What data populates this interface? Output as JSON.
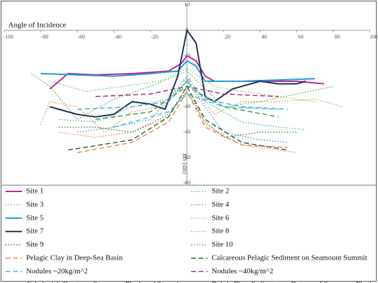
{
  "chart_data": {
    "type": "line",
    "x_label": "Angle of Incidence",
    "y_label": "BS (dB)",
    "xlim": [
      -100,
      100
    ],
    "ylim": [
      -60,
      10
    ],
    "xticks": [
      -100,
      -80,
      -60,
      -40,
      -20,
      20,
      40,
      60,
      80,
      100
    ],
    "yticks": [
      10,
      0,
      -10,
      -20,
      -30,
      -40,
      -50,
      -60
    ],
    "series": [
      {
        "name": "Site 1",
        "color": "#c0249a",
        "style": "solid",
        "x": [
          -75,
          -65,
          -50,
          -30,
          -10,
          -3,
          0,
          5,
          10,
          15,
          40,
          60,
          75
        ],
        "values": [
          -23,
          -17,
          -17.5,
          -17,
          -16,
          -13,
          -10,
          -12,
          -18,
          -20,
          -20,
          -20,
          -21
        ]
      },
      {
        "name": "Site 2",
        "color": "#2aa6a0",
        "style": "dotted",
        "x": [
          -70,
          -50,
          -30,
          -10,
          0,
          10,
          30,
          50,
          65
        ],
        "values": [
          -35,
          -36,
          -30,
          -27,
          -18,
          -28,
          -36,
          -38,
          -39
        ]
      },
      {
        "name": "Site 3",
        "color": "#e07a2e",
        "style": "dotted",
        "x": [
          -80,
          -75,
          -60,
          -45,
          -30,
          -15,
          0,
          15,
          30,
          50,
          70,
          85
        ],
        "values": [
          -37,
          -28,
          -30,
          -40,
          -32,
          -30,
          -20,
          -33,
          -28,
          -28,
          -27,
          -30
        ]
      },
      {
        "name": "Site 4",
        "color": "#3a9a3a",
        "style": "dotted",
        "x": [
          -85,
          -75,
          -60,
          -40,
          -20,
          0,
          20,
          40,
          60,
          80
        ],
        "values": [
          -17,
          -22,
          -35,
          -27,
          -22,
          -16,
          -30,
          -28,
          -25,
          -22
        ]
      },
      {
        "name": "Site 5",
        "color": "#1f9ad6",
        "style": "solid",
        "x": [
          -80,
          -60,
          -40,
          -20,
          -5,
          0,
          5,
          10,
          30,
          50,
          70
        ],
        "values": [
          -17,
          -17.5,
          -18,
          -17,
          -16,
          -12,
          -14,
          -20,
          -20,
          -19.5,
          -19
        ]
      },
      {
        "name": "Site 6",
        "color": "#5cb85c",
        "style": "dotted",
        "x": [
          -75,
          -55,
          -35,
          -15,
          0,
          15,
          30,
          50,
          70
        ],
        "values": [
          -20,
          -24,
          -22,
          -20,
          -15,
          -22,
          -24,
          -26,
          -28
        ]
      },
      {
        "name": "Site 7",
        "color": "#1a3350",
        "style": "solid",
        "x": [
          -75,
          -60,
          -50,
          -40,
          -30,
          -20,
          -12,
          -5,
          0,
          5,
          10,
          15,
          25,
          40,
          50,
          60,
          65
        ],
        "values": [
          -30,
          -33,
          -34,
          -33,
          -28,
          -29,
          -31,
          -18,
          0,
          -5,
          -26,
          -28,
          -23,
          -20,
          -21,
          -21,
          -20
        ]
      },
      {
        "name": "Site 8",
        "color": "#e8692a",
        "style": "dotted",
        "x": [
          -70,
          -50,
          -30,
          -10,
          0,
          10,
          30,
          50,
          60
        ],
        "values": [
          -40,
          -42,
          -40,
          -34,
          -22,
          -37,
          -45,
          -47,
          -48
        ]
      },
      {
        "name": "Site 9",
        "color": "#1e5e2e",
        "style": "dotted",
        "x": [
          -70,
          -50,
          -30,
          -10,
          0,
          10,
          20,
          40,
          60
        ],
        "values": [
          -38,
          -38,
          -40,
          -33,
          -24,
          -36,
          -42,
          -40,
          -40
        ]
      },
      {
        "name": "Site 10",
        "color": "#2c7fc4",
        "style": "dotted",
        "x": [
          -60,
          -40,
          -20,
          0,
          20,
          40,
          55
        ],
        "values": [
          -40,
          -38,
          -35,
          -20,
          -40,
          -43,
          -44
        ]
      },
      {
        "name": "Pelagic Clay in Deep-Sea Basin",
        "color": "#f0834a",
        "style": "dashed",
        "x": [
          -60,
          -30,
          -10,
          0,
          10,
          30,
          55
        ],
        "values": [
          -48,
          -44,
          -36,
          -24,
          -38,
          -45,
          -46
        ]
      },
      {
        "name": "Calcareous Pelagic Sediment on Seamount Summit",
        "color": "#1e6b3a",
        "style": "dashed",
        "x": [
          -65,
          -30,
          -10,
          0,
          10,
          30,
          55
        ],
        "values": [
          -47,
          -43,
          -34,
          -22,
          -35,
          -44,
          -47
        ]
      },
      {
        "name": "Nodules ~20kg/m^2",
        "color": "#3db8d8",
        "style": "dashed",
        "x": [
          -60,
          -30,
          -10,
          0,
          10,
          30,
          55
        ],
        "values": [
          -31,
          -30,
          -28,
          -20,
          -27,
          -30,
          -31
        ]
      },
      {
        "name": "Nodules ~40kg/m^2",
        "color": "#b0287a",
        "style": "dashed",
        "x": [
          -50,
          -20,
          0,
          20,
          50
        ],
        "values": [
          -26,
          -25,
          -22,
          -25,
          -26
        ]
      },
      {
        "name": "Cobalt-rich Crusts on Seamount Flank and Summit",
        "color": "#3aa04a",
        "style": "dashed",
        "x": [
          -50,
          -20,
          0,
          20,
          50
        ],
        "values": [
          -35,
          -32,
          -22,
          -30,
          -34
        ]
      },
      {
        "name": "Debris Flow Sediment on Bottom of Seamount Flanks",
        "color": "#4fc0e8",
        "style": "dashed",
        "x": [
          -40,
          -10,
          0,
          20,
          50
        ],
        "values": [
          -38,
          -32,
          -25,
          -30,
          -31
        ]
      }
    ]
  }
}
